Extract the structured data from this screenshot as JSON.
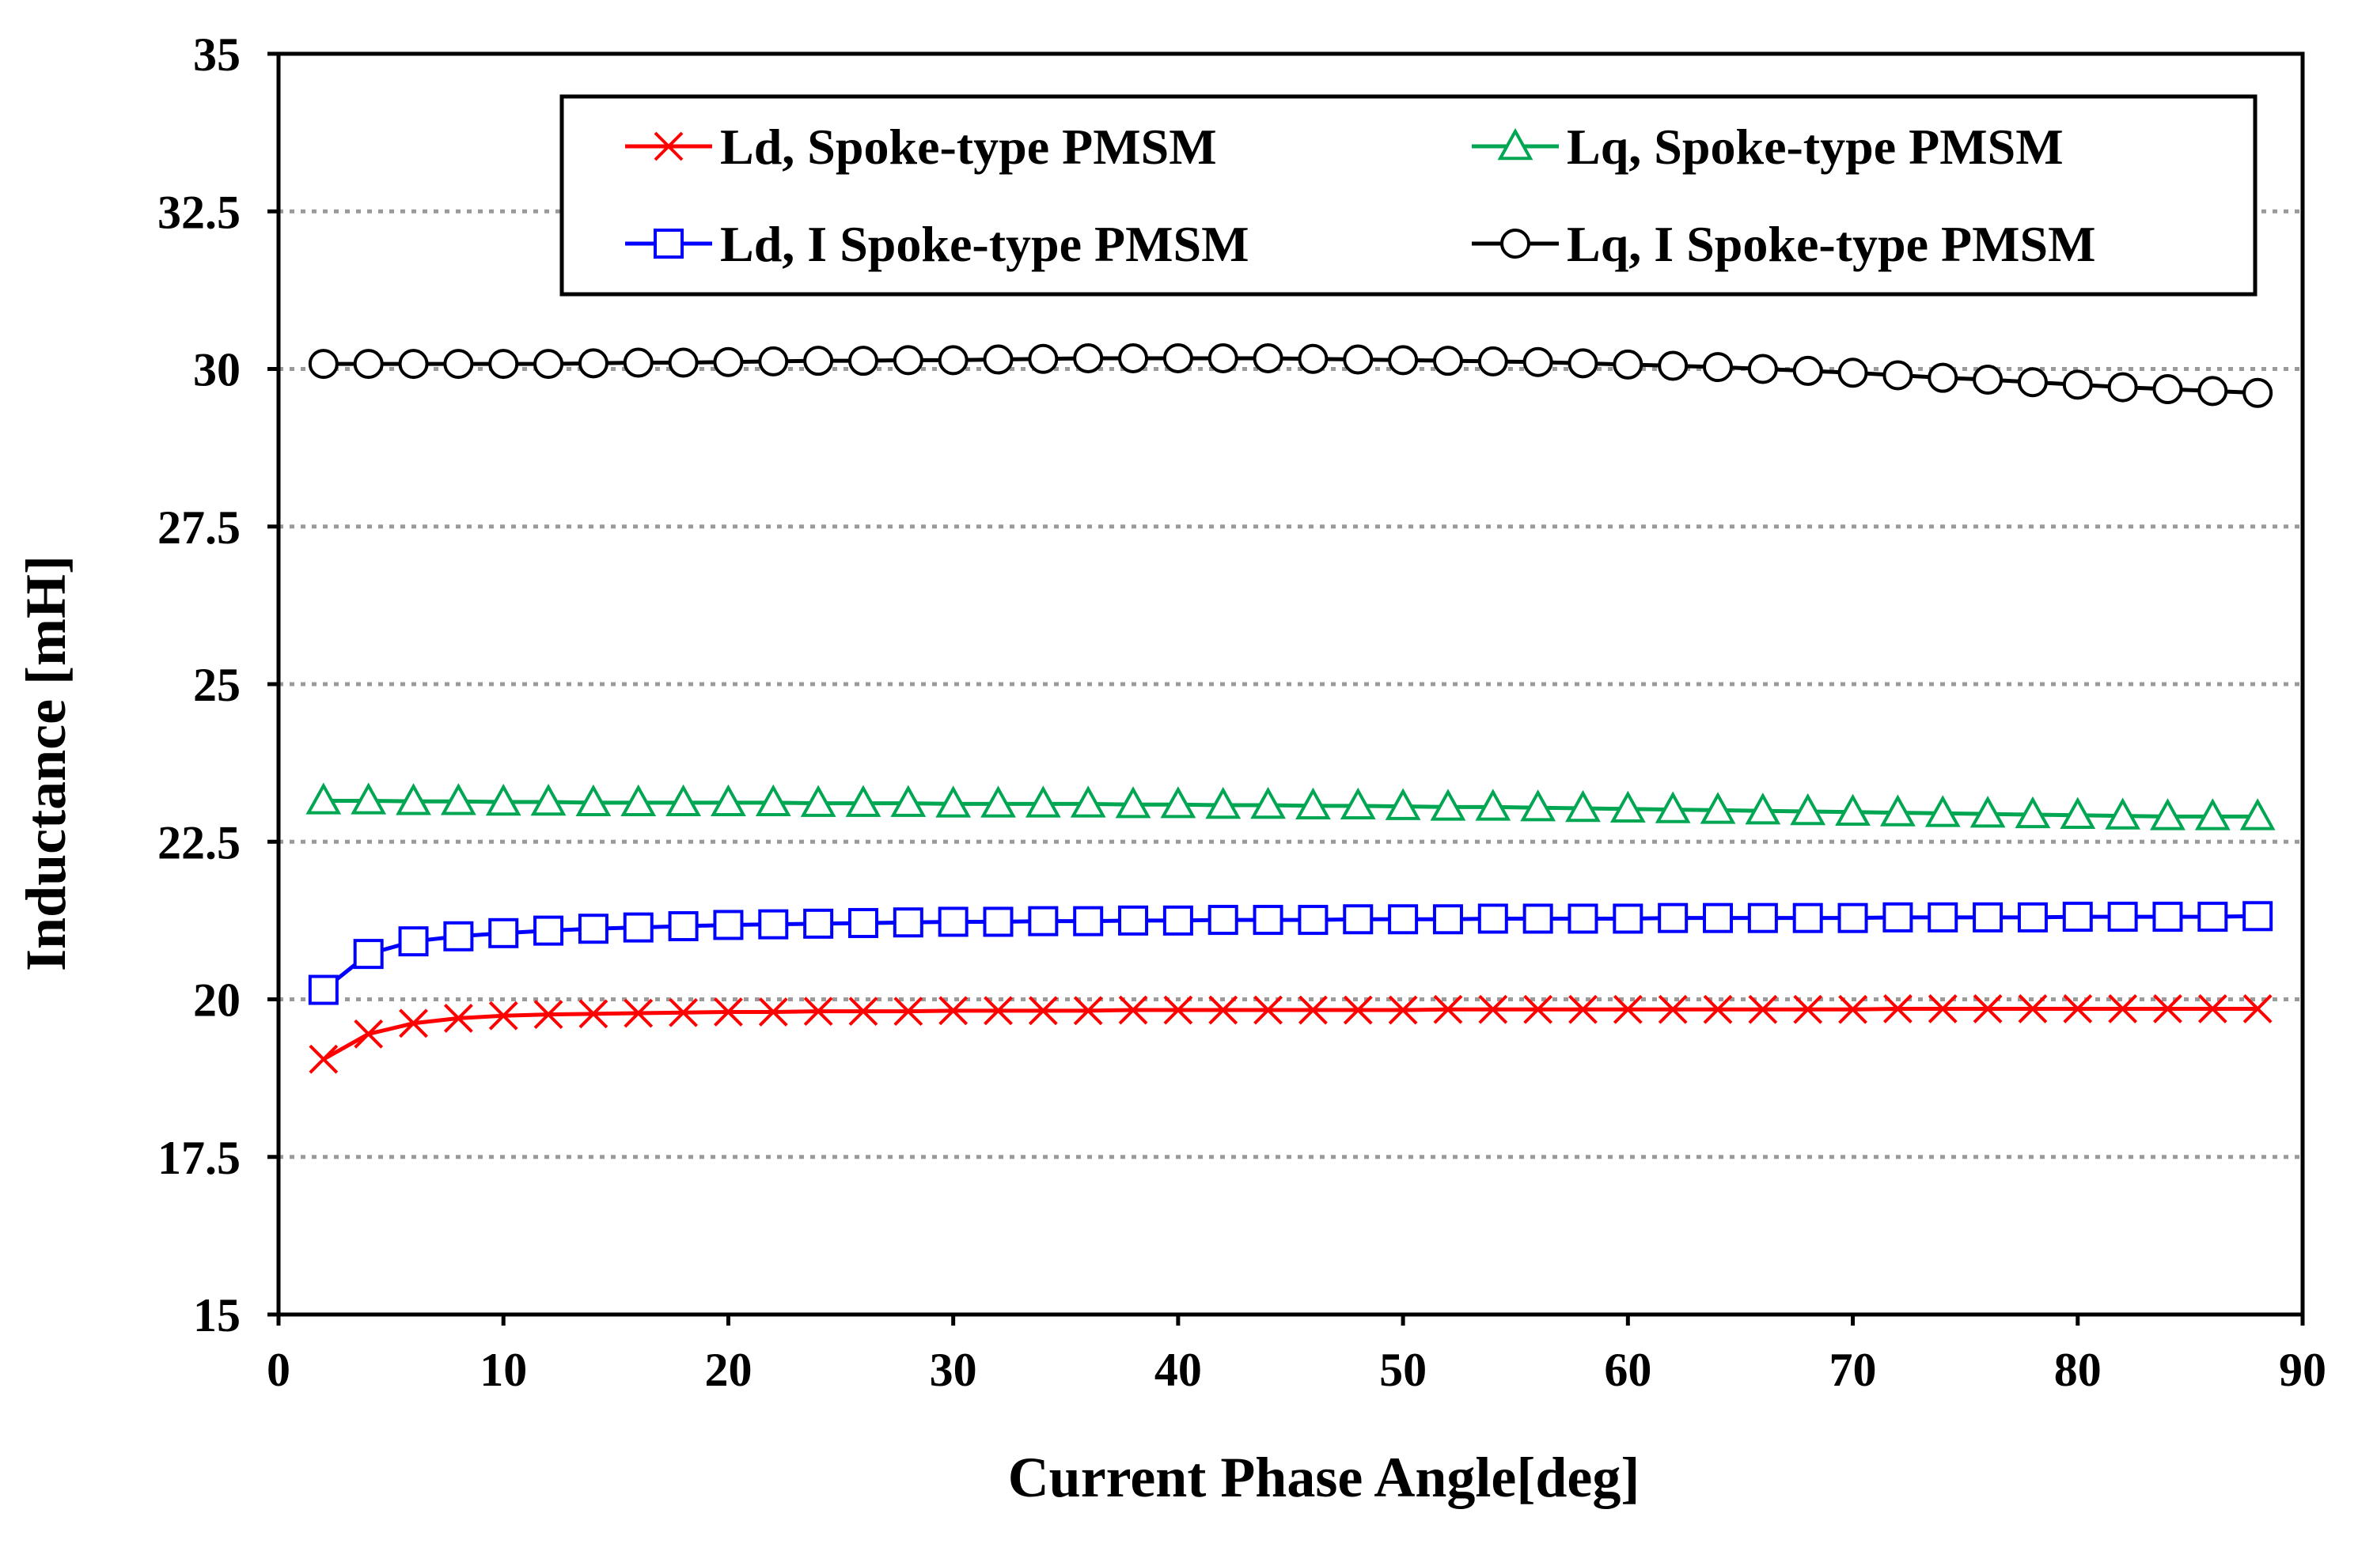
{
  "chart_data": {
    "type": "line",
    "title": "",
    "xlabel": "Current Phase Angle[deg]",
    "ylabel": "Inductance [mH]",
    "xlim": [
      0,
      90
    ],
    "ylim": [
      15,
      35
    ],
    "xticks": [
      0,
      10,
      20,
      30,
      40,
      50,
      60,
      70,
      80,
      90
    ],
    "yticks": [
      15,
      17.5,
      20,
      22.5,
      25,
      27.5,
      30,
      32.5,
      35
    ],
    "ytick_labels": [
      "15",
      "17.5",
      "20",
      "22.5",
      "25",
      "27.5",
      "30",
      "32.5",
      "35"
    ],
    "xtick_labels": [
      "0",
      "10",
      "20",
      "30",
      "40",
      "50",
      "60",
      "70",
      "80",
      "90"
    ],
    "grid": "horizontal dotted",
    "legend_position": "top",
    "x": [
      2,
      4,
      6,
      8,
      10,
      12,
      14,
      16,
      18,
      20,
      22,
      24,
      26,
      28,
      30,
      32,
      34,
      36,
      38,
      40,
      42,
      44,
      46,
      48,
      50,
      52,
      54,
      56,
      58,
      60,
      62,
      64,
      66,
      68,
      70,
      72,
      74,
      76,
      78,
      80,
      82,
      84,
      86,
      88
    ],
    "series": [
      {
        "name": "Ld, Spoke-type PMSM",
        "color": "#ff0000",
        "marker": "x",
        "values": [
          19.05,
          19.45,
          19.62,
          19.7,
          19.74,
          19.76,
          19.77,
          19.78,
          19.79,
          19.8,
          19.8,
          19.81,
          19.81,
          19.81,
          19.82,
          19.82,
          19.82,
          19.82,
          19.83,
          19.83,
          19.83,
          19.83,
          19.83,
          19.83,
          19.83,
          19.84,
          19.84,
          19.84,
          19.84,
          19.84,
          19.84,
          19.84,
          19.84,
          19.84,
          19.84,
          19.85,
          19.85,
          19.85,
          19.85,
          19.85,
          19.85,
          19.85,
          19.85,
          19.85
        ]
      },
      {
        "name": "Lq, Spoke-type PMSM",
        "color": "#00a651",
        "marker": "triangle",
        "values": [
          23.15,
          23.15,
          23.14,
          23.14,
          23.13,
          23.13,
          23.12,
          23.12,
          23.12,
          23.12,
          23.12,
          23.11,
          23.11,
          23.11,
          23.1,
          23.1,
          23.1,
          23.1,
          23.09,
          23.09,
          23.08,
          23.08,
          23.07,
          23.07,
          23.06,
          23.05,
          23.05,
          23.04,
          23.03,
          23.02,
          23.01,
          23.0,
          22.99,
          22.98,
          22.97,
          22.96,
          22.95,
          22.94,
          22.93,
          22.92,
          22.91,
          22.9,
          22.9,
          22.9
        ]
      },
      {
        "name": "Ld, I Spoke-type PMSM",
        "color": "#0000ff",
        "marker": "square",
        "values": [
          20.15,
          20.72,
          20.92,
          21.0,
          21.05,
          21.09,
          21.12,
          21.14,
          21.16,
          21.18,
          21.19,
          21.2,
          21.21,
          21.22,
          21.23,
          21.23,
          21.24,
          21.24,
          21.25,
          21.25,
          21.26,
          21.26,
          21.26,
          21.27,
          21.27,
          21.27,
          21.28,
          21.28,
          21.28,
          21.28,
          21.29,
          21.29,
          21.29,
          21.29,
          21.29,
          21.3,
          21.3,
          21.3,
          21.3,
          21.31,
          21.31,
          21.31,
          21.31,
          21.32
        ]
      },
      {
        "name": "Lq, I Spoke-type PMSM",
        "color": "#000000",
        "marker": "circle",
        "values": [
          30.08,
          30.08,
          30.08,
          30.08,
          30.08,
          30.08,
          30.09,
          30.1,
          30.1,
          30.11,
          30.12,
          30.13,
          30.13,
          30.14,
          30.14,
          30.15,
          30.16,
          30.17,
          30.17,
          30.17,
          30.17,
          30.17,
          30.16,
          30.15,
          30.14,
          30.13,
          30.12,
          30.11,
          30.09,
          30.07,
          30.05,
          30.03,
          30.0,
          29.97,
          29.94,
          29.9,
          29.86,
          29.83,
          29.79,
          29.75,
          29.71,
          29.68,
          29.65,
          29.62
        ]
      }
    ]
  }
}
